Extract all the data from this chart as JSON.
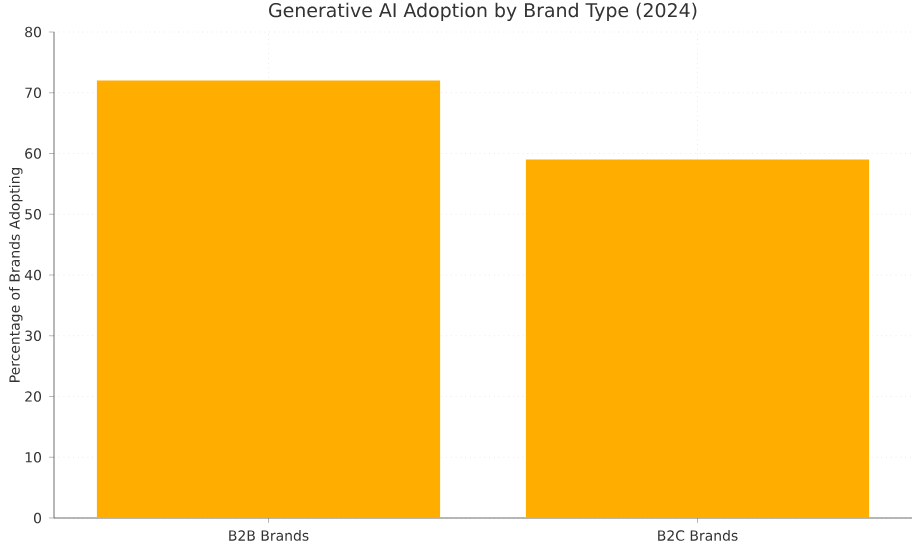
{
  "chart_data": {
    "type": "bar",
    "title": "Generative AI Adoption by Brand Type (2024)",
    "ylabel": "Percentage of Brands Adopting",
    "categories": [
      "B2B Brands",
      "B2C Brands"
    ],
    "values": [
      72,
      59
    ],
    "color": "#ffae00",
    "ylim": [
      0,
      80
    ],
    "yticks": [
      0,
      10,
      20,
      30,
      40,
      50,
      60,
      70,
      80
    ],
    "grid": true
  }
}
